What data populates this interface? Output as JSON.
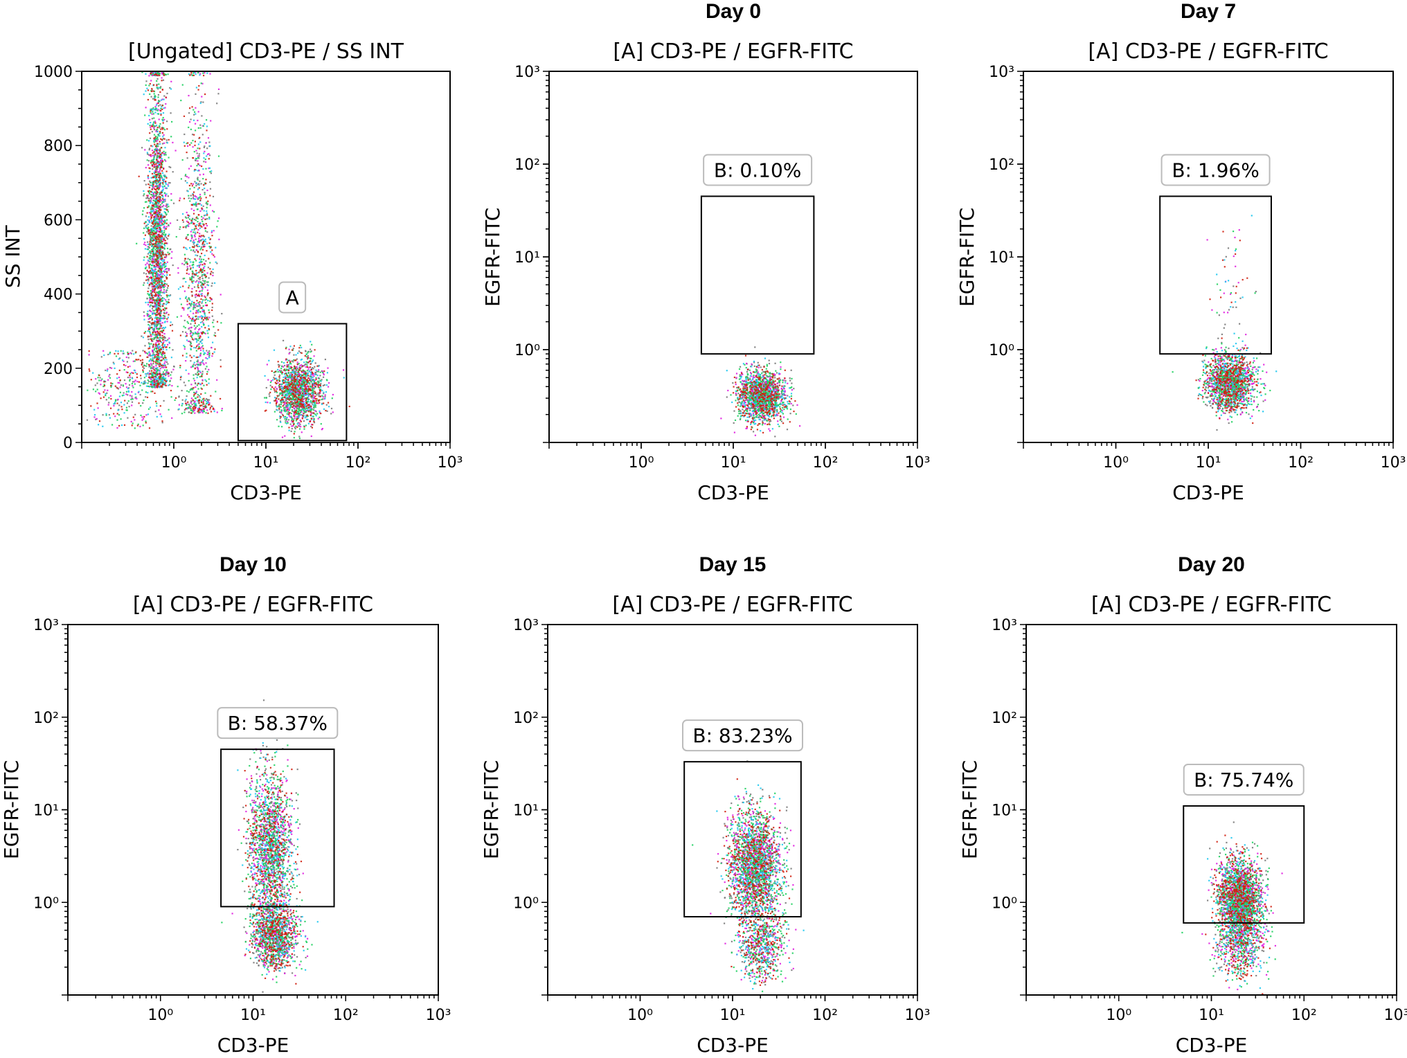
{
  "figure": {
    "panels": [
      {
        "id": "ungated",
        "day_title": "",
        "plot_title": "[Ungated] CD3-PE / SS INT",
        "xlabel": "CD3-PE",
        "ylabel": "SS INT",
        "gate_label": "A"
      },
      {
        "id": "day0",
        "day_title": "Day 0",
        "plot_title": "[A] CD3-PE / EGFR-FITC",
        "xlabel": "CD3-PE",
        "ylabel": "EGFR-FITC",
        "gate_label": "B: 0.10%"
      },
      {
        "id": "day7",
        "day_title": "Day 7",
        "plot_title": "[A] CD3-PE / EGFR-FITC",
        "xlabel": "CD3-PE",
        "ylabel": "EGFR-FITC",
        "gate_label": "B: 1.96%"
      },
      {
        "id": "day10",
        "day_title": "Day 10",
        "plot_title": "[A] CD3-PE / EGFR-FITC",
        "xlabel": "CD3-PE",
        "ylabel": "EGFR-FITC",
        "gate_label": "B: 58.37%"
      },
      {
        "id": "day15",
        "day_title": "Day 15",
        "plot_title": "[A] CD3-PE / EGFR-FITC",
        "xlabel": "CD3-PE",
        "ylabel": "EGFR-FITC",
        "gate_label": "B: 83.23%"
      },
      {
        "id": "day20",
        "day_title": "Day 20",
        "plot_title": "[A] CD3-PE / EGFR-FITC",
        "xlabel": "CD3-PE",
        "ylabel": "EGFR-FITC",
        "gate_label": "B: 75.74%"
      }
    ]
  },
  "chart_data": [
    {
      "type": "scatter",
      "title": "[Ungated] CD3-PE / SS INT",
      "xlabel": "CD3-PE",
      "ylabel": "SS INT",
      "xscale": "log",
      "xlim": [
        0.1,
        1000
      ],
      "yscale": "linear",
      "ylim": [
        0,
        1000
      ],
      "xticks": [
        1,
        10,
        100,
        1000
      ],
      "xtick_labels": [
        "10⁰",
        "10¹",
        "10²",
        "10³"
      ],
      "yticks": [
        0,
        200,
        400,
        600,
        800,
        1000
      ],
      "ytick_labels": [
        "0",
        "200",
        "400",
        "600",
        "800",
        "1000"
      ],
      "gate": {
        "name": "A",
        "x": [
          5,
          75
        ],
        "y": [
          5,
          320
        ]
      },
      "populations": [
        {
          "x": 0.65,
          "y": 500,
          "sx": 0.06,
          "sy": 240,
          "n": 2600,
          "ymin": 150,
          "ymax": 1000
        },
        {
          "x": 1.8,
          "y": 420,
          "sx": 0.09,
          "sy": 260,
          "n": 1200,
          "ymin": 80,
          "ymax": 1000
        },
        {
          "x": 22,
          "y": 140,
          "sx": 0.13,
          "sy": 45,
          "n": 1600,
          "ymin": 10,
          "ymax": 300
        },
        {
          "x": 0.3,
          "y": 150,
          "sx": 0.25,
          "sy": 60,
          "n": 350,
          "ymin": 40,
          "ymax": 250
        }
      ]
    },
    {
      "type": "scatter",
      "title": "[A] CD3-PE / EGFR-FITC",
      "day": "Day 0",
      "xlabel": "CD3-PE",
      "ylabel": "EGFR-FITC",
      "xscale": "log",
      "xlim": [
        0.1,
        1000
      ],
      "yscale": "log",
      "ylim": [
        0.1,
        1000
      ],
      "xticks": [
        1,
        10,
        100,
        1000
      ],
      "xtick_labels": [
        "10⁰",
        "10¹",
        "10²",
        "10³"
      ],
      "yticks": [
        1,
        10,
        100,
        1000
      ],
      "ytick_labels": [
        "10⁰",
        "10¹",
        "10²",
        "10³"
      ],
      "gate": {
        "name": "B",
        "percent": 0.1,
        "x": [
          4.5,
          75
        ],
        "y": [
          0.9,
          45
        ]
      },
      "populations": [
        {
          "x": 20,
          "y": 0.32,
          "sx": 0.13,
          "sy": 0.14,
          "n": 1700
        }
      ]
    },
    {
      "type": "scatter",
      "title": "[A] CD3-PE / EGFR-FITC",
      "day": "Day 7",
      "xlabel": "CD3-PE",
      "ylabel": "EGFR-FITC",
      "xscale": "log",
      "xlim": [
        0.1,
        1000
      ],
      "yscale": "log",
      "ylim": [
        0.1,
        1000
      ],
      "xticks": [
        1,
        10,
        100,
        1000
      ],
      "xtick_labels": [
        "10⁰",
        "10¹",
        "10²",
        "10³"
      ],
      "yticks": [
        1,
        10,
        100,
        1000
      ],
      "ytick_labels": [
        "10⁰",
        "10¹",
        "10²",
        "10³"
      ],
      "gate": {
        "name": "B",
        "percent": 1.96,
        "x": [
          3,
          48
        ],
        "y": [
          0.9,
          45
        ]
      },
      "populations": [
        {
          "x": 17,
          "y": 0.45,
          "sx": 0.13,
          "sy": 0.15,
          "n": 1700
        },
        {
          "x": 17,
          "y": 4,
          "sx": 0.12,
          "sy": 0.35,
          "n": 60
        }
      ]
    },
    {
      "type": "scatter",
      "title": "[A] CD3-PE / EGFR-FITC",
      "day": "Day 10",
      "xlabel": "CD3-PE",
      "ylabel": "EGFR-FITC",
      "xscale": "log",
      "xlim": [
        0.1,
        1000
      ],
      "yscale": "log",
      "ylim": [
        0.1,
        1000
      ],
      "xticks": [
        1,
        10,
        100,
        1000
      ],
      "xtick_labels": [
        "10⁰",
        "10¹",
        "10²",
        "10³"
      ],
      "yticks": [
        1,
        10,
        100,
        1000
      ],
      "ytick_labels": [
        "10⁰",
        "10¹",
        "10²",
        "10³"
      ],
      "gate": {
        "name": "B",
        "percent": 58.37,
        "x": [
          4.5,
          75
        ],
        "y": [
          0.9,
          45
        ]
      },
      "populations": [
        {
          "x": 15,
          "y": 4,
          "sx": 0.12,
          "sy": 0.42,
          "n": 1900
        },
        {
          "x": 17,
          "y": 0.45,
          "sx": 0.12,
          "sy": 0.18,
          "n": 1300
        }
      ]
    },
    {
      "type": "scatter",
      "title": "[A] CD3-PE / EGFR-FITC",
      "day": "Day 15",
      "xlabel": "CD3-PE",
      "ylabel": "EGFR-FITC",
      "xscale": "log",
      "xlim": [
        0.1,
        1000
      ],
      "yscale": "log",
      "ylim": [
        0.1,
        1000
      ],
      "xticks": [
        1,
        10,
        100,
        1000
      ],
      "xtick_labels": [
        "10⁰",
        "10¹",
        "10²",
        "10³"
      ],
      "yticks": [
        1,
        10,
        100,
        1000
      ],
      "ytick_labels": [
        "10⁰",
        "10¹",
        "10²",
        "10³"
      ],
      "gate": {
        "name": "B",
        "percent": 83.23,
        "x": [
          3,
          55
        ],
        "y": [
          0.7,
          33
        ]
      },
      "populations": [
        {
          "x": 17,
          "y": 2.5,
          "sx": 0.14,
          "sy": 0.3,
          "n": 2400
        },
        {
          "x": 20,
          "y": 0.35,
          "sx": 0.12,
          "sy": 0.2,
          "n": 700
        }
      ]
    },
    {
      "type": "scatter",
      "title": "[A] CD3-PE / EGFR-FITC",
      "day": "Day 20",
      "xlabel": "CD3-PE",
      "ylabel": "EGFR-FITC",
      "xscale": "log",
      "xlim": [
        0.1,
        1000
      ],
      "yscale": "log",
      "ylim": [
        0.1,
        1000
      ],
      "xticks": [
        1,
        10,
        100,
        1000
      ],
      "xtick_labels": [
        "10⁰",
        "10¹",
        "10²",
        "10³"
      ],
      "yticks": [
        1,
        10,
        100,
        1000
      ],
      "ytick_labels": [
        "10⁰",
        "10¹",
        "10²",
        "10³"
      ],
      "gate": {
        "name": "B",
        "percent": 75.74,
        "x": [
          5,
          100
        ],
        "y": [
          0.6,
          11
        ]
      },
      "populations": [
        {
          "x": 20,
          "y": 1.1,
          "sx": 0.12,
          "sy": 0.22,
          "n": 2300
        },
        {
          "x": 20,
          "y": 0.35,
          "sx": 0.13,
          "sy": 0.18,
          "n": 600
        }
      ]
    }
  ],
  "colors": {
    "density_low": "#7a7a7a",
    "density_mid": "#e020e0",
    "density_high": "#1ec8f0",
    "density_higher": "#20d060",
    "density_peak": "#d02010",
    "frame": "#000000"
  }
}
